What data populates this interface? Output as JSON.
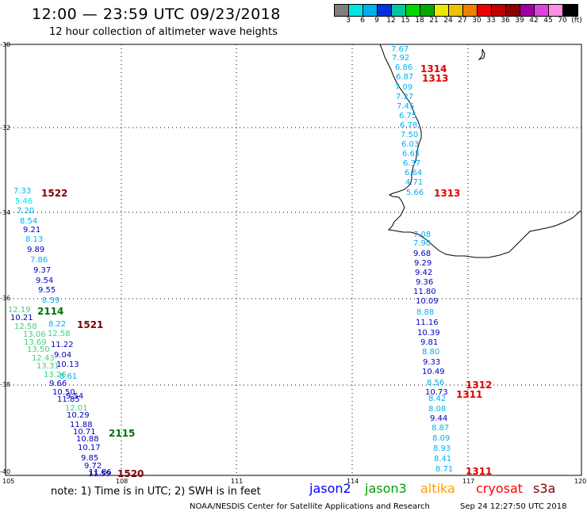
{
  "title": "12:00 — 23:59 UTC 09/23/2018",
  "subtitle": "12 hour collection of altimeter wave heights",
  "legend": {
    "colors": [
      "#7f7f7f",
      "#00e5e5",
      "#00b0f0",
      "#0030e0",
      "#00c8a0",
      "#00d800",
      "#00a800",
      "#e8e800",
      "#f0c000",
      "#f08000",
      "#f00000",
      "#c00000",
      "#900000",
      "#a000a0",
      "#e040e0",
      "#ff90e0",
      "#000000"
    ],
    "labels": [
      "3",
      "6",
      "9",
      "12",
      "15",
      "18",
      "21",
      "24",
      "27",
      "30",
      "33",
      "36",
      "39",
      "42",
      "45",
      "70",
      "(ft)"
    ]
  },
  "axes": {
    "lat_labels": [
      "-30",
      "-32",
      "-34",
      "-36",
      "-38",
      "-40"
    ],
    "lon_labels": [
      "105",
      "108",
      "111",
      "114",
      "117",
      "120"
    ]
  },
  "note": "note: 1) Time is in UTC; 2) SWH is in feet",
  "satellites": [
    {
      "name": "jason2",
      "color": "#0000ff"
    },
    {
      "name": "jason3",
      "color": "#00a000"
    },
    {
      "name": "altika",
      "color": "#ff9900"
    },
    {
      "name": "cryosat",
      "color": "#ff0000"
    },
    {
      "name": "s3a",
      "color": "#800000"
    }
  ],
  "credit": "NOAA/NESDIS Center for Satellite Applications and Research",
  "timestamp": "Sep 24 12:27:50 UTC 2018",
  "track_labels": [
    {
      "text": "1314",
      "color": "#e00000"
    },
    {
      "text": "1313",
      "color": "#e00000"
    },
    {
      "text": "1313",
      "color": "#e00000"
    },
    {
      "text": "1522",
      "color": "#800000"
    },
    {
      "text": "2114",
      "color": "#007000"
    },
    {
      "text": "1521",
      "color": "#800000"
    },
    {
      "text": "1312",
      "color": "#e00000"
    },
    {
      "text": "1311",
      "color": "#e00000"
    },
    {
      "text": "2115",
      "color": "#007000"
    },
    {
      "text": "1520",
      "color": "#800000"
    },
    {
      "text": "1311",
      "color": "#e00000"
    }
  ],
  "wave_heights": [
    {
      "v": "7.67",
      "c": "#00b0f0"
    },
    {
      "v": "7.92",
      "c": "#00b0f0"
    },
    {
      "v": "6.86",
      "c": "#00b0f0"
    },
    {
      "v": "6.87",
      "c": "#00b0f0"
    },
    {
      "v": "7.09",
      "c": "#00b0f0"
    },
    {
      "v": "7.27",
      "c": "#00b0f0"
    },
    {
      "v": "7.45",
      "c": "#00b0f0"
    },
    {
      "v": "6.75",
      "c": "#00b0f0"
    },
    {
      "v": "6.78",
      "c": "#00b0f0"
    },
    {
      "v": "7.50",
      "c": "#00b0f0"
    },
    {
      "v": "6.03",
      "c": "#00b0f0"
    },
    {
      "v": "6.65",
      "c": "#00b0f0"
    },
    {
      "v": "6.37",
      "c": "#00b0f0"
    },
    {
      "v": "6.64",
      "c": "#00b0f0"
    },
    {
      "v": "4.71",
      "c": "#00b0f0"
    },
    {
      "v": "5.66",
      "c": "#00b0f0"
    },
    {
      "v": "7.08",
      "c": "#00b0f0"
    },
    {
      "v": "7.90",
      "c": "#00b0f0"
    },
    {
      "v": "9.68",
      "c": "#0000c0"
    },
    {
      "v": "9.29",
      "c": "#0000c0"
    },
    {
      "v": "9.42",
      "c": "#0000c0"
    },
    {
      "v": "9.36",
      "c": "#0000c0"
    },
    {
      "v": "11.80",
      "c": "#0000c0"
    },
    {
      "v": "10.09",
      "c": "#0000c0"
    },
    {
      "v": "8.88",
      "c": "#00b0f0"
    },
    {
      "v": "11.16",
      "c": "#0000c0"
    },
    {
      "v": "10.39",
      "c": "#0000c0"
    },
    {
      "v": "9.81",
      "c": "#0000c0"
    },
    {
      "v": "8.80",
      "c": "#00b0f0"
    },
    {
      "v": "9.33",
      "c": "#0000c0"
    },
    {
      "v": "10.49",
      "c": "#0000c0"
    },
    {
      "v": "8.56",
      "c": "#00b0f0"
    },
    {
      "v": "10.73",
      "c": "#0000c0"
    },
    {
      "v": "8.42",
      "c": "#00b0f0"
    },
    {
      "v": "8.08",
      "c": "#00b0f0"
    },
    {
      "v": "9.44",
      "c": "#0000c0"
    },
    {
      "v": "8.87",
      "c": "#00b0f0"
    },
    {
      "v": "8.09",
      "c": "#00b0f0"
    },
    {
      "v": "8.93",
      "c": "#00b0f0"
    },
    {
      "v": "8.41",
      "c": "#00b0f0"
    },
    {
      "v": "8.71",
      "c": "#00b0f0"
    },
    {
      "v": "7.33",
      "c": "#00b0f0"
    },
    {
      "v": "5.46",
      "c": "#00e5e5"
    },
    {
      "v": "7.20",
      "c": "#00b0f0"
    },
    {
      "v": "8.54",
      "c": "#00b0f0"
    },
    {
      "v": "9.21",
      "c": "#0000c0"
    },
    {
      "v": "8.13",
      "c": "#00b0f0"
    },
    {
      "v": "9.89",
      "c": "#0000c0"
    },
    {
      "v": "7.86",
      "c": "#00b0f0"
    },
    {
      "v": "9.37",
      "c": "#0000c0"
    },
    {
      "v": "9.54",
      "c": "#0000c0"
    },
    {
      "v": "9.55",
      "c": "#0000c0"
    },
    {
      "v": "8.59",
      "c": "#00b0f0"
    },
    {
      "v": "12.19",
      "c": "#40d080"
    },
    {
      "v": "10.21",
      "c": "#0000c0"
    },
    {
      "v": "8.22",
      "c": "#00b0f0"
    },
    {
      "v": "12.58",
      "c": "#40d080"
    },
    {
      "v": "12.58",
      "c": "#40d080"
    },
    {
      "v": "13.06",
      "c": "#40d080"
    },
    {
      "v": "13.69",
      "c": "#40d080"
    },
    {
      "v": "11.22",
      "c": "#0000c0"
    },
    {
      "v": "13.50",
      "c": "#40d080"
    },
    {
      "v": "9.04",
      "c": "#0000c0"
    },
    {
      "v": "12.43",
      "c": "#40d080"
    },
    {
      "v": "10.13",
      "c": "#0000c0"
    },
    {
      "v": "13.31",
      "c": "#40d080"
    },
    {
      "v": "13.26",
      "c": "#40d080"
    },
    {
      "v": "8.61",
      "c": "#00b0f0"
    },
    {
      "v": "9.66",
      "c": "#0000c0"
    },
    {
      "v": "10.50",
      "c": "#0000c0"
    },
    {
      "v": "9.54",
      "c": "#0000c0"
    },
    {
      "v": "11.85",
      "c": "#0000c0"
    },
    {
      "v": "12.01",
      "c": "#40d080"
    },
    {
      "v": "10.29",
      "c": "#0000c0"
    },
    {
      "v": "11.88",
      "c": "#0000c0"
    },
    {
      "v": "10.71",
      "c": "#0000c0"
    },
    {
      "v": "10.88",
      "c": "#0000c0"
    },
    {
      "v": "10.17",
      "c": "#0000c0"
    },
    {
      "v": "9.85",
      "c": "#0000c0"
    },
    {
      "v": "9.72",
      "c": "#0000c0"
    },
    {
      "v": "11.86",
      "c": "#0000c0"
    },
    {
      "v": "11.59",
      "c": "#0000c0"
    }
  ]
}
